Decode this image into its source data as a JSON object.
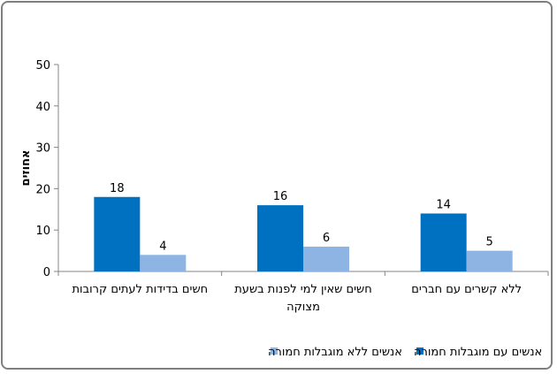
{
  "chart_data": {
    "type": "bar",
    "title": "",
    "xlabel": "",
    "ylabel": "אחוזים",
    "ylim": [
      0,
      50
    ],
    "yticks": [
      "0",
      "10",
      "20",
      "30",
      "40",
      "50"
    ],
    "categories": [
      "חשים בדידות לעתים קרובות",
      "חשים שאין למי לפנות בשעת מצוקה",
      "ללא קשרים עם חברים"
    ],
    "category_lines": [
      [
        "חשים בדידות לעתים קרובות"
      ],
      [
        "חשים שאין למי לפנות בשעת",
        "מצוקה"
      ],
      [
        "ללא קשרים עם חברים"
      ]
    ],
    "series": [
      {
        "name": "אנשים עם מוגבלות חמורה",
        "color": "#0070c0",
        "values": [
          18,
          16,
          14
        ],
        "labels": [
          "18",
          "16",
          "14"
        ]
      },
      {
        "name": "אנשים ללא מוגבלות חמורה",
        "color": "#8db4e2",
        "values": [
          4,
          6,
          5
        ],
        "labels": [
          "4",
          "6",
          "5"
        ]
      }
    ],
    "grid": false,
    "legend_position": "bottom"
  }
}
